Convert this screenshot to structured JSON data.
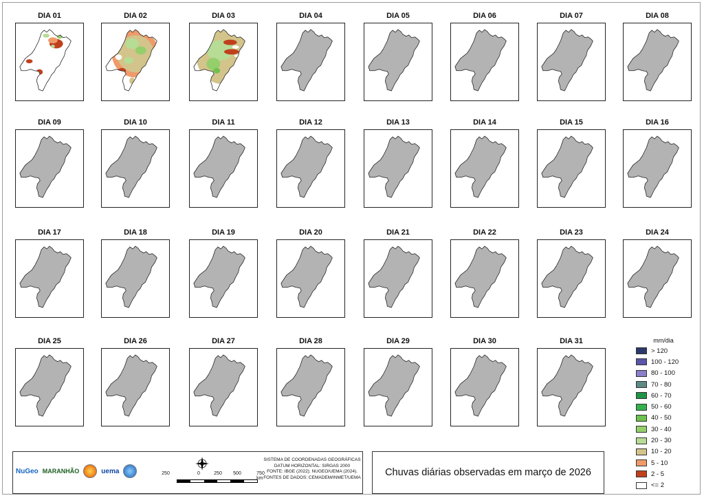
{
  "days": [
    "DIA 01",
    "DIA 02",
    "DIA 03",
    "DIA 04",
    "DIA 05",
    "DIA 06",
    "DIA 07",
    "DIA 08",
    "DIA 09",
    "DIA 10",
    "DIA 11",
    "DIA 12",
    "DIA 13",
    "DIA 14",
    "DIA 15",
    "DIA 16",
    "DIA 17",
    "DIA 18",
    "DIA 19",
    "DIA 20",
    "DIA 21",
    "DIA 22",
    "DIA 23",
    "DIA 24",
    "DIA 25",
    "DIA 26",
    "DIA 27",
    "DIA 28",
    "DIA 29",
    "DIA 30",
    "DIA 31"
  ],
  "days_with_rainfall": [
    "DIA 01",
    "DIA 02",
    "DIA 03"
  ],
  "legend": {
    "title": "mm/dia",
    "classes": [
      {
        "label": "> 120",
        "color": "#2b3a6b"
      },
      {
        "label": "100 - 120",
        "color": "#5a55a6"
      },
      {
        "label": "80 - 100",
        "color": "#8a7fc9"
      },
      {
        "label": "70 - 80",
        "color": "#5e8a86"
      },
      {
        "label": "60 - 70",
        "color": "#1f9446"
      },
      {
        "label": "50 - 60",
        "color": "#35b04e"
      },
      {
        "label": "40 - 50",
        "color": "#6ec14f"
      },
      {
        "label": "30 - 40",
        "color": "#94cf6c"
      },
      {
        "label": "20 - 30",
        "color": "#b7dc95"
      },
      {
        "label": "10 - 20",
        "color": "#d2c48a"
      },
      {
        "label": "5 - 10",
        "color": "#ef9a6a"
      },
      {
        "label": "2 - 5",
        "color": "#c0401d"
      },
      {
        "label": "<= 2",
        "color": "#ffffff"
      }
    ]
  },
  "scale": {
    "ticks": [
      "250",
      "0",
      "250",
      "500",
      "750 km"
    ]
  },
  "info_lines": [
    "SISTEMA DE COORDENADAS GEOGRÁFICAS",
    "DATUM HORIZONTAL: SIRGAS 2000",
    "FONTE: IBGE (2022); NUGEO/UEMA (2024).",
    "FONTES DE DADOS: CEMADEM/INMET/UEMA"
  ],
  "logos": [
    "NuGeo",
    "MARANHÃO",
    "uema"
  ],
  "title": "Chuvas diárias observadas em março de 2026",
  "colors": {
    "state_fill": "#b3b3b3",
    "outline": "#222222"
  }
}
